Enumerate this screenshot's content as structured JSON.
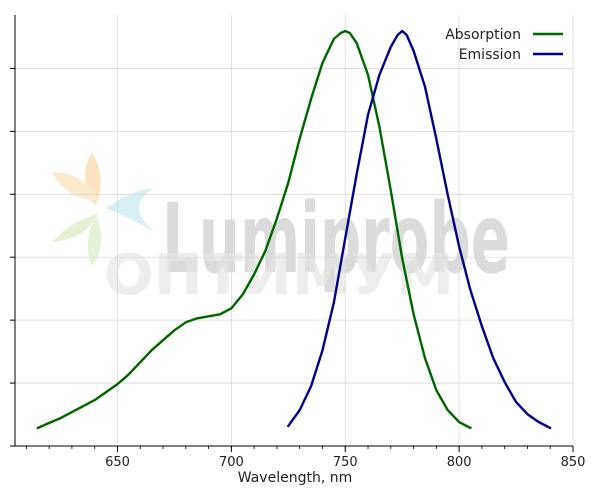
{
  "watermark": {
    "brand": "Lumiprobe",
    "subbrand": "ОПТИМУМ"
  },
  "chart_data": {
    "type": "line",
    "title": "",
    "xlabel": "Wavelength, nm",
    "ylabel": "",
    "xlim": [
      605,
      850
    ],
    "ylim": [
      0,
      1.08
    ],
    "xticks": [
      650,
      700,
      750,
      800,
      850
    ],
    "grid": true,
    "legend_position": "top-right",
    "series": [
      {
        "name": "Absorption",
        "color": "#006400",
        "x": [
          615,
          620,
          625,
          630,
          635,
          640,
          645,
          650,
          655,
          660,
          665,
          670,
          675,
          680,
          685,
          690,
          695,
          700,
          705,
          710,
          715,
          720,
          725,
          730,
          735,
          740,
          745,
          748,
          750,
          752,
          755,
          760,
          765,
          770,
          775,
          780,
          785,
          790,
          795,
          800,
          805
        ],
        "y": [
          0.045,
          0.058,
          0.07,
          0.085,
          0.1,
          0.115,
          0.135,
          0.155,
          0.18,
          0.21,
          0.24,
          0.265,
          0.29,
          0.31,
          0.32,
          0.325,
          0.33,
          0.345,
          0.38,
          0.43,
          0.49,
          0.57,
          0.66,
          0.77,
          0.87,
          0.96,
          1.02,
          1.035,
          1.04,
          1.035,
          1.01,
          0.93,
          0.8,
          0.64,
          0.47,
          0.33,
          0.22,
          0.14,
          0.09,
          0.06,
          0.045
        ]
      },
      {
        "name": "Emission",
        "color": "#00008b",
        "x": [
          725,
          730,
          735,
          740,
          745,
          750,
          755,
          760,
          765,
          770,
          773,
          775,
          777,
          780,
          785,
          790,
          795,
          800,
          805,
          810,
          815,
          820,
          825,
          830,
          835,
          840
        ],
        "y": [
          0.05,
          0.09,
          0.15,
          0.24,
          0.36,
          0.52,
          0.68,
          0.83,
          0.93,
          1.0,
          1.03,
          1.04,
          1.03,
          0.99,
          0.9,
          0.77,
          0.63,
          0.5,
          0.39,
          0.3,
          0.22,
          0.16,
          0.11,
          0.08,
          0.06,
          0.045
        ]
      }
    ]
  }
}
